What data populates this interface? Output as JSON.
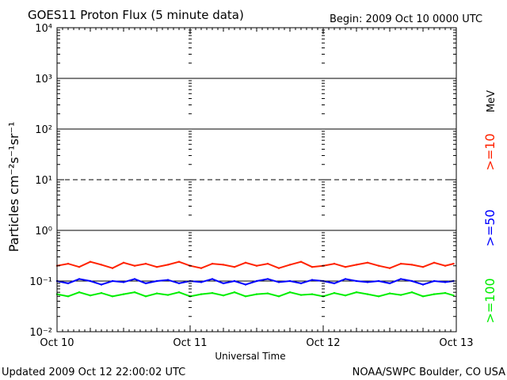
{
  "header": {
    "title": "GOES11 Proton Flux (5 minute data)",
    "begin": "Begin: 2009 Oct 10 0000 UTC"
  },
  "footer": {
    "updated": "Updated 2009 Oct 12 22:00:02 UTC",
    "credit": "NOAA/SWPC Boulder, CO USA"
  },
  "colors": {
    "ge10": "#ff2200",
    "ge50": "#0000ff",
    "ge100": "#00ee00",
    "axis": "#000000"
  },
  "chart_data": {
    "type": "line",
    "title": "GOES11 Proton Flux (5 minute data)",
    "xlabel": "Universal Time",
    "ylabel": "Particles cm⁻²s⁻¹sr⁻¹",
    "yscale": "log",
    "ylim": [
      0.01,
      10000
    ],
    "xlim": [
      0,
      72
    ],
    "x_unit": "hours since 2009 Oct 10 0000 UTC",
    "x_ticks": [
      "Oct 10",
      "Oct 11",
      "Oct 12",
      "Oct 13"
    ],
    "y_ticks": [
      "10⁻²",
      "10⁻¹",
      "10⁰",
      "10¹",
      "10²",
      "10³",
      "10⁴"
    ],
    "threshold_lines": [
      {
        "value": 10,
        "style": "dashed"
      },
      {
        "value": 0.1,
        "style": "solid"
      },
      {
        "value": 1,
        "style": "solid"
      },
      {
        "value": 100,
        "style": "solid"
      },
      {
        "value": 1000,
        "style": "solid"
      }
    ],
    "unit_label": "MeV",
    "series": [
      {
        "name": ">=10",
        "color": "#ff2200",
        "x_hours": [
          0,
          2,
          4,
          6,
          8,
          10,
          12,
          14,
          16,
          18,
          20,
          22,
          24,
          26,
          28,
          30,
          32,
          34,
          36,
          38,
          40,
          42,
          44,
          46,
          48,
          50,
          52,
          54,
          56,
          58,
          60,
          62,
          64,
          66,
          68,
          70,
          71.5
        ],
        "values": [
          0.2,
          0.22,
          0.19,
          0.24,
          0.21,
          0.18,
          0.23,
          0.2,
          0.22,
          0.19,
          0.21,
          0.24,
          0.2,
          0.18,
          0.22,
          0.21,
          0.19,
          0.23,
          0.2,
          0.22,
          0.18,
          0.21,
          0.24,
          0.19,
          0.2,
          0.22,
          0.19,
          0.21,
          0.23,
          0.2,
          0.18,
          0.22,
          0.21,
          0.19,
          0.23,
          0.2,
          0.22
        ]
      },
      {
        "name": ">=50",
        "color": "#0000ff",
        "x_hours": [
          0,
          2,
          4,
          6,
          8,
          10,
          12,
          14,
          16,
          18,
          20,
          22,
          24,
          26,
          28,
          30,
          32,
          34,
          36,
          38,
          40,
          42,
          44,
          46,
          48,
          50,
          52,
          54,
          56,
          58,
          60,
          62,
          64,
          66,
          68,
          70,
          71.5
        ],
        "values": [
          0.1,
          0.09,
          0.11,
          0.1,
          0.085,
          0.1,
          0.095,
          0.11,
          0.09,
          0.1,
          0.105,
          0.09,
          0.1,
          0.095,
          0.11,
          0.09,
          0.1,
          0.085,
          0.1,
          0.11,
          0.095,
          0.1,
          0.09,
          0.105,
          0.1,
          0.09,
          0.11,
          0.1,
          0.095,
          0.1,
          0.09,
          0.11,
          0.1,
          0.085,
          0.1,
          0.095,
          0.1
        ]
      },
      {
        "name": ">=100",
        "color": "#00ee00",
        "x_hours": [
          0,
          2,
          4,
          6,
          8,
          10,
          12,
          14,
          16,
          18,
          20,
          22,
          24,
          26,
          28,
          30,
          32,
          34,
          36,
          38,
          40,
          42,
          44,
          46,
          48,
          50,
          52,
          54,
          56,
          58,
          60,
          62,
          64,
          66,
          68,
          70,
          71.5
        ],
        "values": [
          0.055,
          0.05,
          0.06,
          0.052,
          0.058,
          0.05,
          0.055,
          0.06,
          0.05,
          0.057,
          0.053,
          0.06,
          0.05,
          0.055,
          0.058,
          0.052,
          0.06,
          0.05,
          0.055,
          0.057,
          0.05,
          0.06,
          0.053,
          0.055,
          0.05,
          0.058,
          0.052,
          0.06,
          0.055,
          0.05,
          0.057,
          0.053,
          0.06,
          0.05,
          0.055,
          0.058,
          0.052
        ]
      }
    ]
  }
}
